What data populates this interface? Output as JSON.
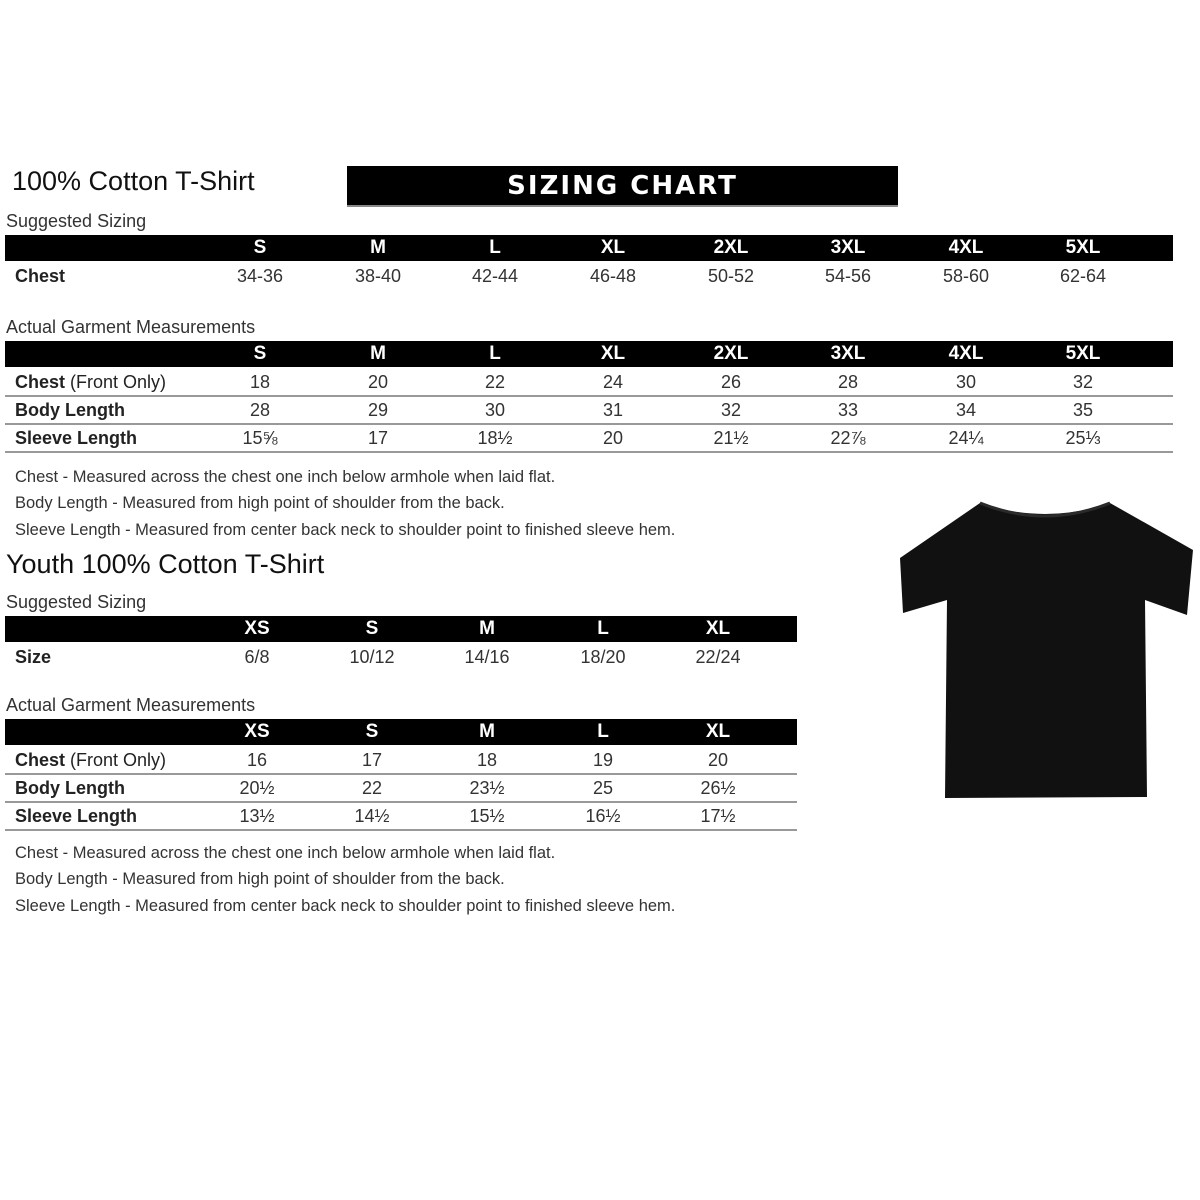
{
  "banner": "SIZING CHART",
  "adult": {
    "title": "100% Cotton T-Shirt",
    "suggested_label": "Suggested Sizing",
    "sizes": [
      "S",
      "M",
      "L",
      "XL",
      "2XL",
      "3XL",
      "4XL",
      "5XL"
    ],
    "suggested_rows": [
      {
        "label": "Chest",
        "values": [
          "34-36",
          "38-40",
          "42-44",
          "46-48",
          "50-52",
          "54-56",
          "58-60",
          "62-64"
        ]
      }
    ],
    "actual_label": "Actual Garment Measurements",
    "actual_rows": [
      {
        "label": "Chest",
        "label_suffix": " (Front Only)",
        "values": [
          "18",
          "20",
          "22",
          "24",
          "26",
          "28",
          "30",
          "32"
        ]
      },
      {
        "label": "Body Length",
        "label_suffix": "",
        "values": [
          "28",
          "29",
          "30",
          "31",
          "32",
          "33",
          "34",
          "35"
        ]
      },
      {
        "label": "Sleeve Length",
        "label_suffix": "",
        "values": [
          "15⅝",
          "17",
          "18½",
          "20",
          "21½",
          "22⅞",
          "24¼",
          "25⅓"
        ]
      }
    ],
    "notes": [
      "Chest - Measured across the chest one inch below armhole when laid flat.",
      "Body Length - Measured from high point of shoulder from the back.",
      "Sleeve Length - Measured from center back neck to shoulder point to finished sleeve hem."
    ]
  },
  "youth": {
    "title": "Youth 100% Cotton T-Shirt",
    "suggested_label": "Suggested Sizing",
    "sizes": [
      "XS",
      "S",
      "M",
      "L",
      "XL"
    ],
    "suggested_rows": [
      {
        "label": "Size",
        "values": [
          "6/8",
          "10/12",
          "14/16",
          "18/20",
          "22/24"
        ]
      }
    ],
    "actual_label": "Actual Garment Measurements",
    "actual_rows": [
      {
        "label": "Chest",
        "label_suffix": " (Front Only)",
        "values": [
          "16",
          "17",
          "18",
          "19",
          "20"
        ]
      },
      {
        "label": "Body Length",
        "label_suffix": "",
        "values": [
          "20½",
          "22",
          "23½",
          "25",
          "26½"
        ]
      },
      {
        "label": "Sleeve Length",
        "label_suffix": "",
        "values": [
          "13½",
          "14½",
          "15½",
          "16½",
          "17½"
        ]
      }
    ],
    "notes": [
      "Chest - Measured across the chest one inch below armhole when laid flat.",
      "Body Length - Measured from high point of shoulder from the back.",
      "Sleeve Length - Measured from center back neck to shoulder point to finished sleeve hem."
    ]
  },
  "image": {
    "icon": "tshirt-icon",
    "color": "#111111"
  }
}
